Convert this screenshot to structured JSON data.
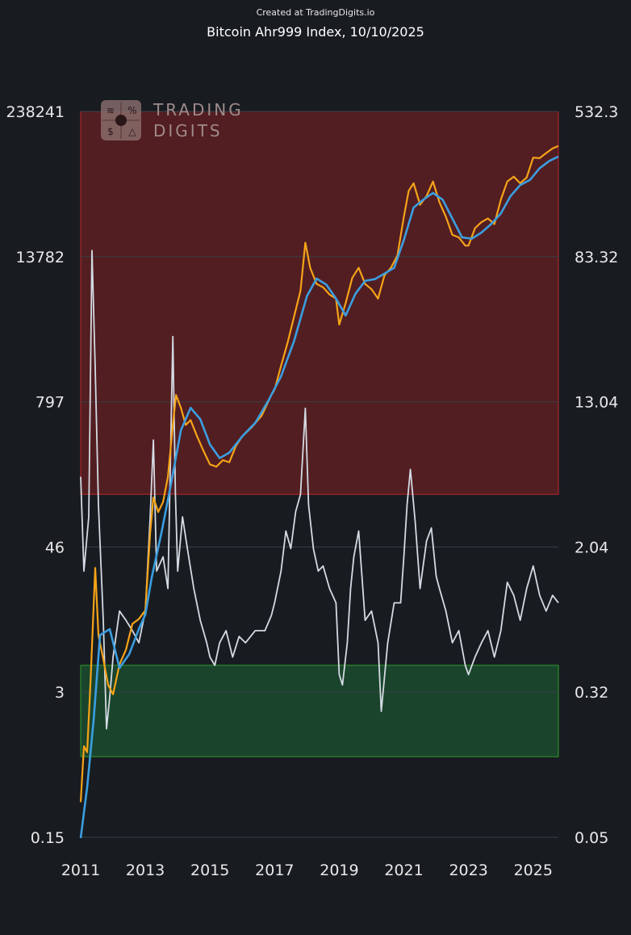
{
  "credit": "Created at TradingDigits.io",
  "title": "Bitcoin Ahr999 Index, 10/10/2025",
  "logo": {
    "line1": "TRADING",
    "line2": "DIGITS"
  },
  "colors": {
    "background": "#181c21",
    "overvalued_zone": "#521e22",
    "undervalued_zone": "#1a452c",
    "price": "#f5a318",
    "moving_average": "#3b9ee0",
    "ahr999": "#d4dae3",
    "grid": "#3a3f47"
  },
  "chart_data": {
    "type": "line",
    "title": "Bitcoin Ahr999 Index, 10/10/2025",
    "x_ticks": [
      "2011",
      "2013",
      "2015",
      "2017",
      "2019",
      "2021",
      "2023",
      "2025"
    ],
    "xlim": [
      2011.0,
      2025.78
    ],
    "left_axis": {
      "scale": "log",
      "ticks": [
        "238241",
        "13782",
        "797",
        "46",
        "3",
        "0.15"
      ],
      "ylim": [
        0.15,
        238241
      ]
    },
    "right_axis": {
      "scale": "log",
      "ticks": [
        "532.3",
        "83.32",
        "13.04",
        "2.04",
        "0.32",
        "0.05"
      ],
      "ylim": [
        0.05,
        532.3
      ]
    },
    "zones": [
      {
        "name": "overvalued",
        "from": 4.0,
        "to": 532.3
      },
      {
        "name": "undervalued",
        "from": 0.14,
        "to": 0.45
      }
    ],
    "grid": true,
    "series": [
      {
        "axis": "left",
        "x": [
          2011.0,
          2011.1,
          2011.2,
          2011.3,
          2011.45,
          2011.55,
          2011.7,
          2011.85,
          2012.0,
          2012.2,
          2012.4,
          2012.6,
          2012.8,
          2013.0,
          2013.15,
          2013.25,
          2013.4,
          2013.55,
          2013.7,
          2013.85,
          2013.95,
          2014.1,
          2014.25,
          2014.4,
          2014.6,
          2014.8,
          2015.0,
          2015.2,
          2015.4,
          2015.6,
          2015.8,
          2016.0,
          2016.3,
          2016.6,
          2016.9,
          2017.0,
          2017.2,
          2017.4,
          2017.6,
          2017.8,
          2017.95,
          2018.1,
          2018.3,
          2018.5,
          2018.7,
          2018.9,
          2019.0,
          2019.2,
          2019.4,
          2019.6,
          2019.8,
          2020.0,
          2020.2,
          2020.4,
          2020.6,
          2020.8,
          2021.0,
          2021.15,
          2021.3,
          2021.5,
          2021.7,
          2021.9,
          2022.1,
          2022.3,
          2022.5,
          2022.7,
          2022.9,
          2023.0,
          2023.2,
          2023.4,
          2023.6,
          2023.8,
          2024.0,
          2024.2,
          2024.4,
          2024.6,
          2024.8,
          2025.0,
          2025.2,
          2025.4,
          2025.6,
          2025.78
        ],
        "y": [
          0.3,
          0.9,
          0.8,
          3.0,
          30,
          8,
          5,
          3,
          2.5,
          4.5,
          6,
          10,
          11,
          13,
          60,
          120,
          90,
          110,
          180,
          500,
          900,
          700,
          500,
          550,
          400,
          300,
          230,
          220,
          250,
          240,
          330,
          400,
          480,
          600,
          900,
          1000,
          1600,
          2500,
          4200,
          7000,
          18000,
          11000,
          8000,
          7500,
          6500,
          6000,
          3600,
          5500,
          9000,
          11000,
          8000,
          7200,
          6000,
          9500,
          11000,
          14000,
          30000,
          50000,
          58000,
          38000,
          45000,
          60000,
          40000,
          30000,
          21000,
          20000,
          17000,
          17000,
          24000,
          27000,
          29000,
          26000,
          42000,
          60000,
          66000,
          58000,
          65000,
          96000,
          95000,
          105000,
          115000,
          121000
        ]
      },
      {
        "axis": "left",
        "x": [
          2011.0,
          2011.2,
          2011.4,
          2011.6,
          2011.9,
          2012.2,
          2012.5,
          2012.8,
          2013.0,
          2013.2,
          2013.5,
          2013.8,
          2014.1,
          2014.4,
          2014.7,
          2015.0,
          2015.3,
          2015.6,
          2016.0,
          2016.4,
          2016.8,
          2017.2,
          2017.6,
          2018.0,
          2018.3,
          2018.6,
          2018.9,
          2019.2,
          2019.5,
          2019.8,
          2020.1,
          2020.4,
          2020.7,
          2021.0,
          2021.3,
          2021.6,
          2021.9,
          2022.2,
          2022.5,
          2022.8,
          2023.1,
          2023.4,
          2023.7,
          2024.0,
          2024.3,
          2024.6,
          2024.9,
          2025.2,
          2025.5,
          2025.78
        ],
        "y": [
          0.12,
          0.4,
          1.5,
          8,
          9,
          4.2,
          5.5,
          9,
          12,
          25,
          60,
          160,
          450,
          700,
          560,
          340,
          260,
          290,
          400,
          520,
          800,
          1300,
          2600,
          6300,
          8900,
          7900,
          6000,
          4300,
          6600,
          8500,
          8800,
          9800,
          11000,
          19000,
          36000,
          42000,
          48000,
          42000,
          29000,
          20000,
          19500,
          22000,
          26000,
          32000,
          45000,
          56000,
          62000,
          78000,
          90000,
          98000
        ]
      },
      {
        "axis": "right",
        "x": [
          2011.0,
          2011.1,
          2011.25,
          2011.35,
          2011.45,
          2011.55,
          2011.7,
          2011.8,
          2011.9,
          2012.0,
          2012.2,
          2012.4,
          2012.6,
          2012.8,
          2013.0,
          2013.15,
          2013.25,
          2013.35,
          2013.55,
          2013.7,
          2013.85,
          2013.93,
          2014.0,
          2014.15,
          2014.3,
          2014.5,
          2014.7,
          2014.9,
          2015.0,
          2015.15,
          2015.3,
          2015.5,
          2015.7,
          2015.9,
          2016.1,
          2016.4,
          2016.7,
          2016.9,
          2017.0,
          2017.2,
          2017.35,
          2017.5,
          2017.65,
          2017.8,
          2017.95,
          2018.05,
          2018.2,
          2018.35,
          2018.5,
          2018.7,
          2018.9,
          2019.0,
          2019.1,
          2019.25,
          2019.35,
          2019.45,
          2019.6,
          2019.8,
          2020.0,
          2020.2,
          2020.3,
          2020.5,
          2020.7,
          2020.9,
          2021.0,
          2021.1,
          2021.2,
          2021.35,
          2021.5,
          2021.7,
          2021.85,
          2022.0,
          2022.1,
          2022.3,
          2022.5,
          2022.7,
          2022.9,
          2023.0,
          2023.2,
          2023.4,
          2023.6,
          2023.8,
          2024.0,
          2024.2,
          2024.4,
          2024.6,
          2024.8,
          2025.0,
          2025.2,
          2025.4,
          2025.6,
          2025.78
        ],
        "y": [
          5.0,
          1.5,
          3.0,
          90,
          20,
          3.5,
          0.8,
          0.2,
          0.3,
          0.5,
          0.9,
          0.8,
          0.7,
          0.6,
          0.9,
          3.0,
          8.0,
          1.5,
          1.8,
          1.2,
          30,
          4.0,
          1.5,
          3.0,
          2.0,
          1.2,
          0.8,
          0.6,
          0.5,
          0.45,
          0.6,
          0.7,
          0.5,
          0.65,
          0.6,
          0.7,
          0.7,
          0.85,
          1.0,
          1.5,
          2.5,
          2.0,
          3.2,
          4.0,
          12,
          3.5,
          2.0,
          1.5,
          1.6,
          1.2,
          1.0,
          0.4,
          0.35,
          0.6,
          1.2,
          1.8,
          2.5,
          0.8,
          0.9,
          0.6,
          0.25,
          0.6,
          1.0,
          1.0,
          1.8,
          3.5,
          5.5,
          2.8,
          1.2,
          2.2,
          2.6,
          1.4,
          1.2,
          0.9,
          0.6,
          0.7,
          0.45,
          0.4,
          0.5,
          0.6,
          0.7,
          0.5,
          0.7,
          1.3,
          1.1,
          0.8,
          1.2,
          1.6,
          1.1,
          0.9,
          1.1,
          1.0
        ]
      }
    ]
  }
}
